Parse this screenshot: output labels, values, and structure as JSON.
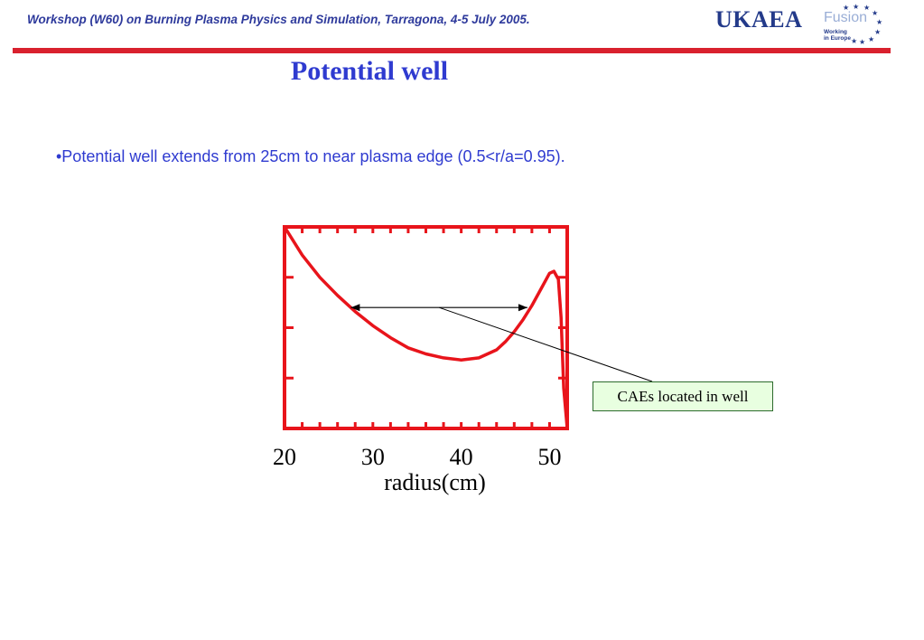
{
  "header": {
    "text": "Workshop (W60) on Burning Plasma Physics and Simulation, Tarragona, 4-5 July 2005.",
    "accent_color": "#d9212e"
  },
  "logo": {
    "org": "UKAEA",
    "fusion": "Fusion",
    "working": "Working",
    "in_europe": "in Europe"
  },
  "title": "Potential well",
  "bullet": "•Potential well extends from 25cm to near plasma edge (0.5<r/a=0.95).",
  "callout": "CAEs located in well",
  "chart_data": {
    "type": "line",
    "title": "",
    "xlabel": "radius(cm)",
    "ylabel": "",
    "xlim": [
      20,
      52
    ],
    "ylim": [
      0,
      1
    ],
    "xticks": [
      20,
      30,
      40,
      50
    ],
    "xtick_labels": [
      "20",
      "30",
      "40",
      "50"
    ],
    "yticks_count": 4,
    "grid": false,
    "color": "#e8141b",
    "series": [
      {
        "x": [
          20,
          22,
          24,
          26,
          28,
          30,
          32,
          34,
          36,
          38,
          40,
          42,
          44,
          45,
          46,
          47,
          48,
          49,
          50,
          50.5,
          51,
          51.3,
          51.6,
          52
        ],
        "values": [
          1.0,
          0.86,
          0.75,
          0.66,
          0.58,
          0.51,
          0.45,
          0.4,
          0.37,
          0.35,
          0.34,
          0.35,
          0.39,
          0.43,
          0.48,
          0.54,
          0.61,
          0.69,
          0.77,
          0.78,
          0.74,
          0.55,
          0.2,
          0.0
        ]
      }
    ],
    "annotation": {
      "type": "double-arrow",
      "x_start": 27.5,
      "x_end": 47.5,
      "y": 0.6
    }
  }
}
